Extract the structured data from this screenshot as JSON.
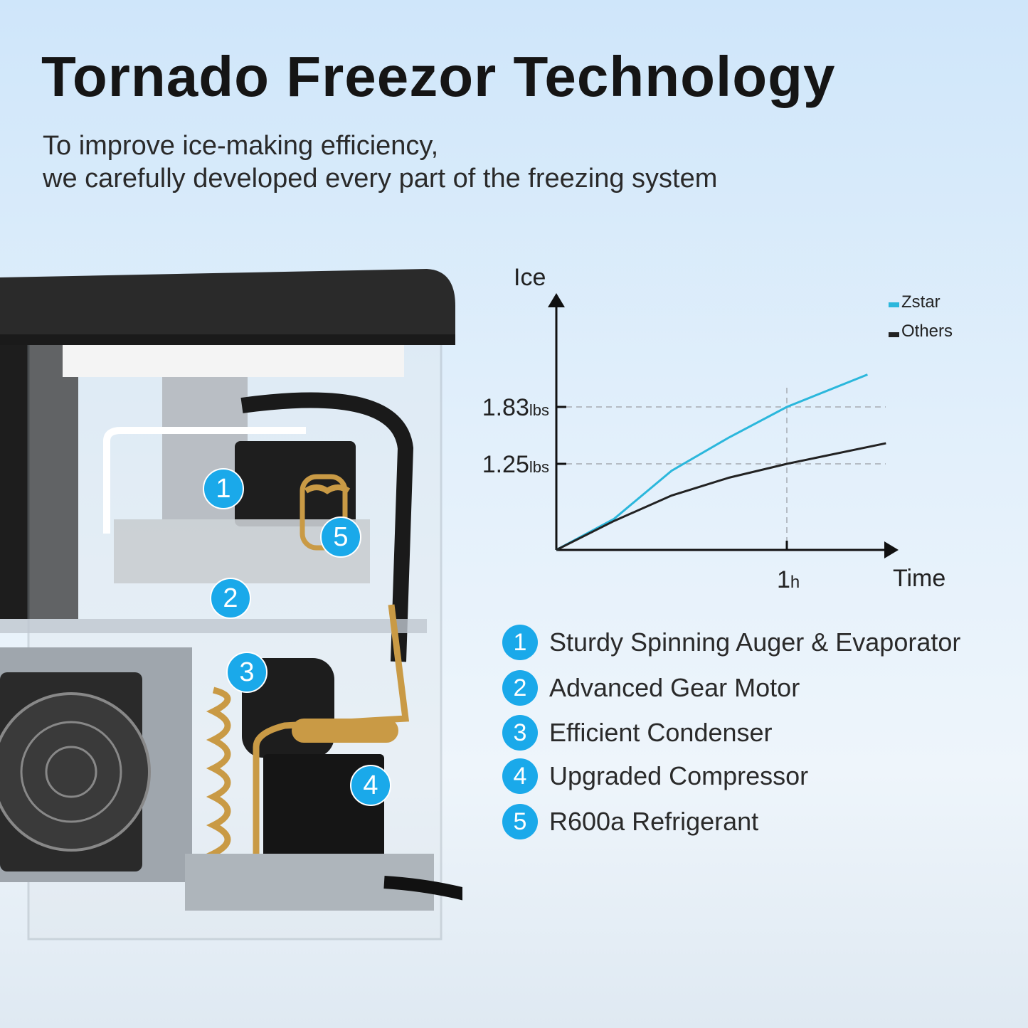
{
  "header": {
    "title": "Tornado Freezor Technology",
    "subtitle_lines": [
      "To improve ice-making efficiency,",
      "we carefully developed every part of the freezing system"
    ]
  },
  "product_badges": [
    "1",
    "5",
    "2",
    "3",
    "4"
  ],
  "features": [
    {
      "num": "1",
      "label": "Sturdy Spinning Auger & Evaporator"
    },
    {
      "num": "2",
      "label": "Advanced Gear Motor"
    },
    {
      "num": "3",
      "label": "Efficient Condenser"
    },
    {
      "num": "4",
      "label": "Upgraded Compressor"
    },
    {
      "num": "5",
      "label": "R600a Refrigerant"
    }
  ],
  "colors": {
    "accent": "#1aa9ea",
    "zstar": "#2bb7dc",
    "others": "#222222"
  },
  "chart_data": {
    "type": "line",
    "ylabel": "Ice",
    "xlabel": "Time",
    "y_ticks": [
      {
        "value": 1.83,
        "label": "1.83",
        "unit": "lbs"
      },
      {
        "value": 1.25,
        "label": "1.25",
        "unit": "lbs"
      }
    ],
    "x_ticks": [
      {
        "value": 1,
        "label": "1",
        "unit": "h"
      }
    ],
    "grid": "dashed reference lines at ticks",
    "legend_placement": "top-right",
    "series": [
      {
        "name": "Zstar",
        "x": [
          0,
          0.25,
          0.5,
          0.75,
          1,
          1.35
        ],
        "y": [
          0,
          0.45,
          1.15,
          1.52,
          1.83,
          2.16
        ]
      },
      {
        "name": "Others",
        "x": [
          0,
          0.25,
          0.5,
          0.75,
          1,
          1.43
        ],
        "y": [
          0,
          0.42,
          0.79,
          1.05,
          1.25,
          1.46
        ]
      }
    ]
  }
}
